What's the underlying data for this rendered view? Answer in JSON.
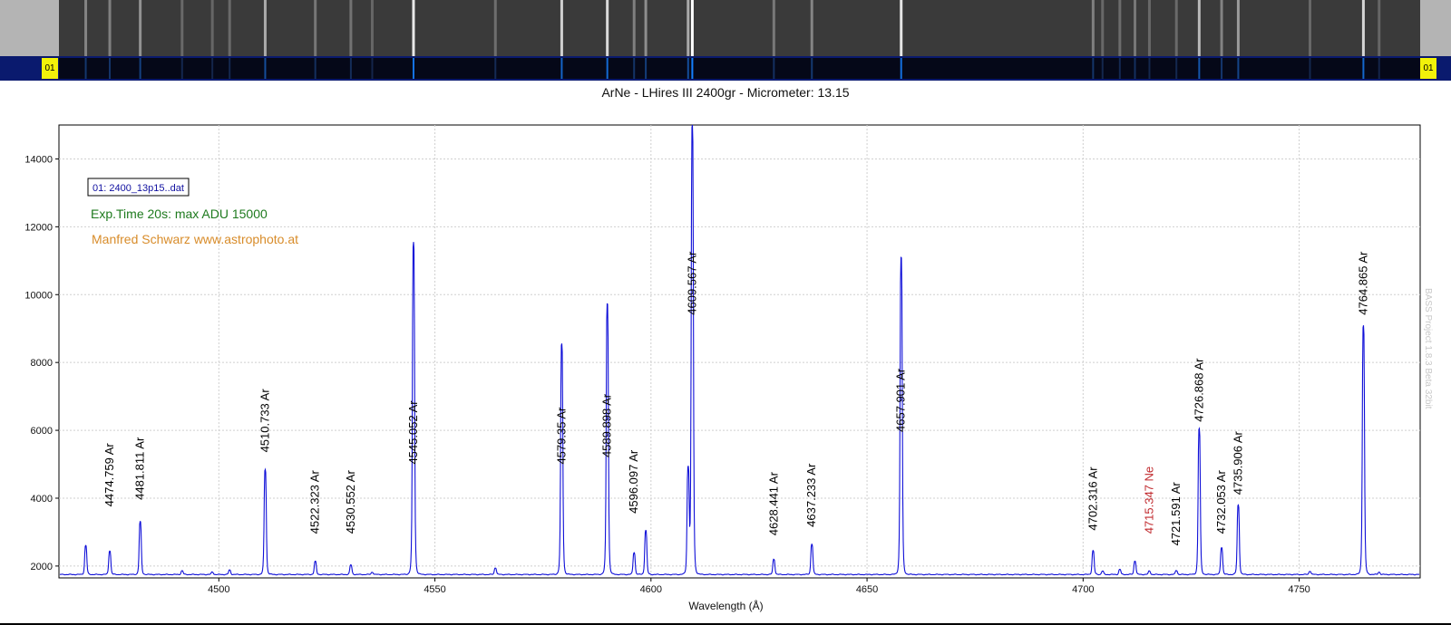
{
  "markers": {
    "left": "01",
    "right": "01"
  },
  "watermark": "BASS Project 1.8.3 Beta 32bit",
  "chart_data": {
    "type": "line",
    "title": "ArNe - LHires III 2400gr - Micrometer: 13.15",
    "xlabel": "Wavelength (Å)",
    "ylabel": "",
    "xlim": [
      4463,
      4778
    ],
    "ylim": [
      1650,
      15000
    ],
    "xticks": [
      4500,
      4550,
      4600,
      4650,
      4700,
      4750
    ],
    "yticks": [
      2000,
      4000,
      6000,
      8000,
      10000,
      12000,
      14000
    ],
    "grid": true,
    "legend": {
      "label": "01: 2400_13p15..dat",
      "position": "top-left"
    },
    "annotations": [
      {
        "text": "Exp.Time 20s: max ADU 15000",
        "color": "#1e7a1e"
      },
      {
        "text": "Manfred Schwarz www.astrophoto.at",
        "color": "#d88c2a"
      }
    ],
    "baseline": 1750,
    "series": [
      {
        "color": "#1010d8",
        "peaks": [
          {
            "x": 4469.2,
            "y": 2600
          },
          {
            "x": 4474.759,
            "y": 2450
          },
          {
            "x": 4481.811,
            "y": 3300
          },
          {
            "x": 4491.5,
            "y": 1860
          },
          {
            "x": 4498.5,
            "y": 1820
          },
          {
            "x": 4502.5,
            "y": 1880
          },
          {
            "x": 4510.733,
            "y": 4850
          },
          {
            "x": 4522.323,
            "y": 2130
          },
          {
            "x": 4530.552,
            "y": 2030
          },
          {
            "x": 4535.5,
            "y": 1820
          },
          {
            "x": 4545.052,
            "y": 11550
          },
          {
            "x": 4564.0,
            "y": 1950
          },
          {
            "x": 4579.35,
            "y": 8550
          },
          {
            "x": 4589.898,
            "y": 9750
          },
          {
            "x": 4596.097,
            "y": 2400
          },
          {
            "x": 4598.8,
            "y": 3050
          },
          {
            "x": 4608.6,
            "y": 4850
          },
          {
            "x": 4609.567,
            "y": 15000
          },
          {
            "x": 4628.441,
            "y": 2200
          },
          {
            "x": 4637.233,
            "y": 2650
          },
          {
            "x": 4657.901,
            "y": 11100
          },
          {
            "x": 4702.316,
            "y": 2450
          },
          {
            "x": 4704.5,
            "y": 1850
          },
          {
            "x": 4708.5,
            "y": 1900
          },
          {
            "x": 4712.0,
            "y": 2150
          },
          {
            "x": 4715.347,
            "y": 1850
          },
          {
            "x": 4721.591,
            "y": 1870
          },
          {
            "x": 4726.868,
            "y": 6050
          },
          {
            "x": 4732.053,
            "y": 2550
          },
          {
            "x": 4735.906,
            "y": 3800
          },
          {
            "x": 4752.5,
            "y": 1850
          },
          {
            "x": 4764.865,
            "y": 9100
          },
          {
            "x": 4768.5,
            "y": 1820
          }
        ]
      }
    ],
    "line_labels": [
      {
        "x": 4474.759,
        "y": 3750,
        "text": "4474.759 Ar",
        "color": "#000000"
      },
      {
        "x": 4481.811,
        "y": 3950,
        "text": "4481.811 Ar",
        "color": "#000000"
      },
      {
        "x": 4510.733,
        "y": 5350,
        "text": "4510.733 Ar",
        "color": "#000000"
      },
      {
        "x": 4522.323,
        "y": 2950,
        "text": "4522.323 Ar",
        "color": "#000000"
      },
      {
        "x": 4530.552,
        "y": 2950,
        "text": "4530.552 Ar",
        "color": "#000000"
      },
      {
        "x": 4545.052,
        "y": 5000,
        "text": "4545.052 Ar",
        "color": "#000000"
      },
      {
        "x": 4579.35,
        "y": 5000,
        "text": "4579.35 Ar",
        "color": "#000000"
      },
      {
        "x": 4589.898,
        "y": 5200,
        "text": "4589.898 Ar",
        "color": "#000000"
      },
      {
        "x": 4596.097,
        "y": 3550,
        "text": "4596.097 Ar",
        "color": "#000000"
      },
      {
        "x": 4609.567,
        "y": 9400,
        "text": "4609.567 Ar",
        "color": "#000000"
      },
      {
        "x": 4628.441,
        "y": 2900,
        "text": "4628.441 Ar",
        "color": "#000000"
      },
      {
        "x": 4637.233,
        "y": 3150,
        "text": "4637.233 Ar",
        "color": "#000000"
      },
      {
        "x": 4657.901,
        "y": 5950,
        "text": "4657.901 Ar",
        "color": "#000000"
      },
      {
        "x": 4702.316,
        "y": 3050,
        "text": "4702.316 Ar",
        "color": "#000000"
      },
      {
        "x": 4715.347,
        "y": 2950,
        "text": "4715.347 Ne",
        "color": "#c0282c"
      },
      {
        "x": 4721.591,
        "y": 2600,
        "text": "4721.591 Ar",
        "color": "#000000"
      },
      {
        "x": 4726.868,
        "y": 6250,
        "text": "4726.868 Ar",
        "color": "#000000"
      },
      {
        "x": 4732.053,
        "y": 2950,
        "text": "4732.053 Ar",
        "color": "#000000"
      },
      {
        "x": 4735.906,
        "y": 4100,
        "text": "4735.906 Ar",
        "color": "#000000"
      },
      {
        "x": 4764.865,
        "y": 9400,
        "text": "4764.865 Ar",
        "color": "#000000"
      }
    ]
  }
}
